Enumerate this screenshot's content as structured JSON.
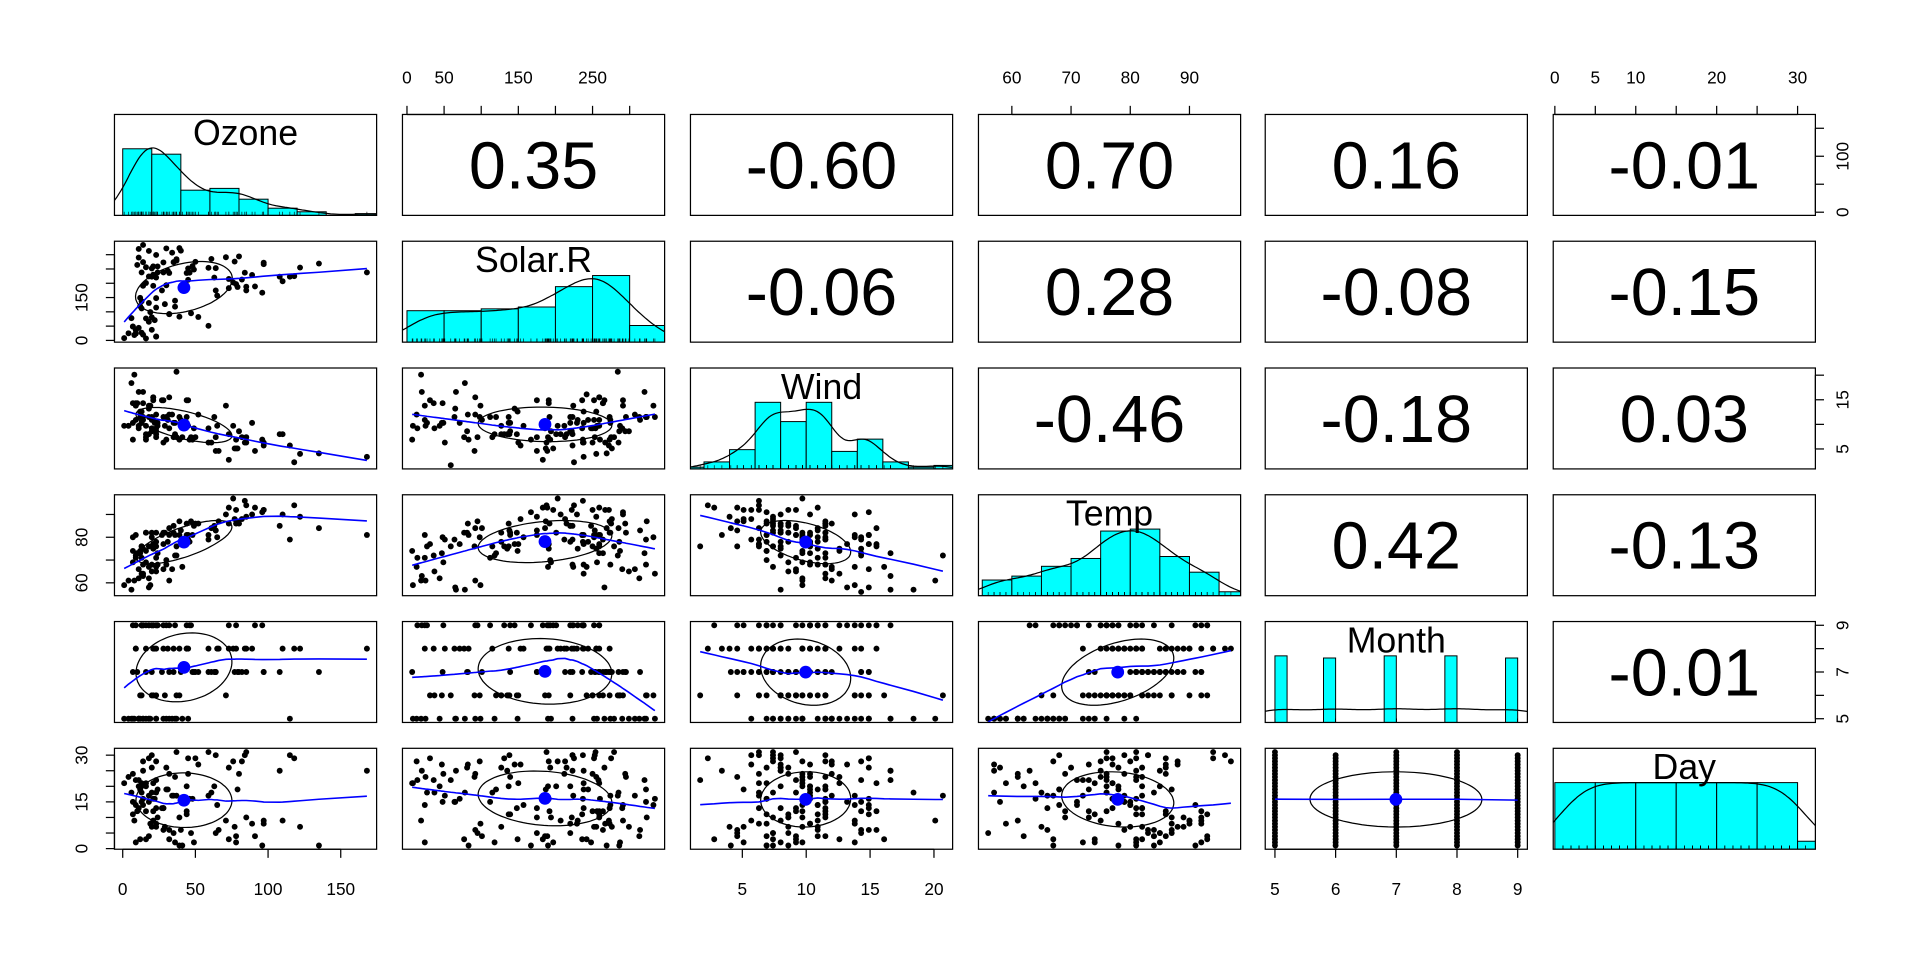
{
  "chart_data": {
    "type": "scatter-matrix",
    "variables": [
      "Ozone",
      "Solar.R",
      "Wind",
      "Temp",
      "Month",
      "Day"
    ],
    "columns": {
      "Ozone": [
        41,
        36,
        12,
        18,
        null,
        28,
        23,
        19,
        8,
        null,
        7,
        16,
        11,
        14,
        18,
        14,
        34,
        6,
        30,
        11,
        1,
        11,
        4,
        32,
        null,
        null,
        null,
        23,
        45,
        115,
        37,
        null,
        null,
        null,
        null,
        null,
        null,
        29,
        null,
        71,
        39,
        null,
        null,
        23,
        null,
        null,
        21,
        37,
        20,
        12,
        13,
        null,
        null,
        null,
        null,
        null,
        null,
        null,
        null,
        null,
        null,
        135,
        49,
        32,
        null,
        64,
        40,
        77,
        97,
        97,
        85,
        null,
        10,
        27,
        null,
        7,
        48,
        35,
        61,
        79,
        63,
        16,
        null,
        null,
        80,
        108,
        20,
        52,
        82,
        50,
        64,
        59,
        39,
        9,
        16,
        78,
        35,
        66,
        122,
        89,
        110,
        null,
        null,
        44,
        28,
        65,
        null,
        22,
        59,
        23,
        31,
        44,
        21,
        9,
        null,
        45,
        168,
        73,
        null,
        76,
        118,
        84,
        85,
        96,
        78,
        73,
        91,
        47,
        32,
        20,
        23,
        21,
        24,
        44,
        21,
        28,
        9,
        13,
        46,
        18,
        13,
        24,
        16,
        13,
        23,
        36,
        7,
        14,
        30,
        null,
        14,
        18,
        20
      ],
      "Solar.R": [
        190,
        118,
        149,
        313,
        null,
        null,
        299,
        99,
        19,
        194,
        null,
        256,
        290,
        274,
        65,
        334,
        307,
        78,
        322,
        44,
        8,
        320,
        25,
        92,
        66,
        266,
        null,
        13,
        252,
        223,
        279,
        286,
        287,
        242,
        186,
        220,
        264,
        127,
        273,
        291,
        323,
        259,
        250,
        148,
        332,
        322,
        191,
        284,
        37,
        120,
        137,
        150,
        59,
        91,
        250,
        135,
        127,
        47,
        98,
        31,
        138,
        269,
        248,
        236,
        101,
        175,
        314,
        276,
        267,
        272,
        175,
        139,
        264,
        175,
        291,
        48,
        260,
        274,
        285,
        187,
        220,
        7,
        258,
        295,
        294,
        223,
        81,
        82,
        213,
        275,
        253,
        254,
        83,
        24,
        77,
        null,
        null,
        null,
        255,
        229,
        207,
        222,
        137,
        192,
        273,
        157,
        64,
        71,
        51,
        115,
        244,
        190,
        259,
        36,
        255,
        212,
        238,
        215,
        153,
        203,
        225,
        237,
        188,
        167,
        197,
        183,
        189,
        95,
        92,
        252,
        220,
        230,
        259,
        236,
        259,
        238,
        24,
        112,
        237,
        224,
        27,
        238,
        201,
        238,
        14,
        139,
        49,
        20,
        193,
        145,
        191,
        131,
        223
      ],
      "Wind": [
        7.4,
        8.0,
        12.6,
        11.5,
        14.3,
        14.9,
        8.6,
        13.8,
        20.1,
        8.6,
        6.9,
        9.7,
        9.2,
        10.9,
        13.2,
        11.5,
        12.0,
        18.4,
        11.5,
        9.7,
        9.7,
        16.6,
        9.7,
        12.0,
        16.6,
        14.9,
        8.0,
        12.0,
        14.9,
        5.7,
        7.4,
        8.6,
        9.7,
        16.1,
        9.2,
        8.6,
        14.3,
        9.7,
        6.9,
        13.8,
        11.5,
        10.9,
        9.2,
        8.0,
        13.8,
        11.5,
        14.9,
        20.7,
        9.2,
        11.5,
        10.3,
        6.3,
        1.7,
        4.6,
        6.3,
        8.0,
        8.0,
        10.3,
        11.5,
        14.9,
        8.0,
        4.1,
        9.2,
        9.2,
        10.9,
        4.6,
        10.9,
        5.1,
        6.3,
        5.7,
        7.4,
        8.6,
        14.3,
        14.9,
        14.9,
        14.3,
        6.9,
        10.3,
        6.3,
        5.1,
        11.5,
        6.9,
        9.7,
        11.5,
        8.6,
        8.0,
        8.6,
        12.0,
        7.4,
        7.4,
        7.4,
        9.2,
        6.9,
        13.8,
        7.4,
        6.9,
        7.4,
        4.6,
        4.0,
        10.3,
        8.0,
        8.6,
        11.5,
        11.5,
        11.5,
        9.7,
        11.5,
        10.3,
        6.3,
        7.4,
        10.9,
        10.3,
        15.5,
        14.3,
        12.6,
        9.7,
        3.4,
        8.0,
        5.7,
        9.7,
        2.3,
        6.3,
        6.3,
        6.9,
        5.1,
        2.8,
        4.6,
        7.4,
        15.5,
        10.9,
        10.3,
        10.9,
        9.7,
        14.9,
        15.5,
        6.3,
        10.9,
        11.5,
        6.9,
        13.8,
        10.3,
        10.3,
        8.0,
        12.6,
        9.2,
        10.3,
        10.3,
        16.6,
        6.9,
        13.2,
        14.3,
        8.0,
        11.5
      ],
      "Temp": [
        67,
        72,
        74,
        62,
        56,
        66,
        65,
        59,
        61,
        69,
        74,
        69,
        66,
        68,
        58,
        64,
        66,
        57,
        68,
        62,
        59,
        73,
        61,
        61,
        57,
        58,
        57,
        67,
        81,
        79,
        76,
        78,
        74,
        67,
        84,
        85,
        79,
        82,
        87,
        90,
        87,
        93,
        92,
        82,
        80,
        79,
        77,
        72,
        65,
        73,
        76,
        77,
        76,
        76,
        76,
        75,
        78,
        73,
        80,
        77,
        83,
        84,
        85,
        81,
        84,
        83,
        83,
        88,
        92,
        92,
        89,
        82,
        73,
        81,
        91,
        80,
        81,
        82,
        84,
        87,
        85,
        74,
        81,
        82,
        86,
        85,
        82,
        86,
        88,
        86,
        83,
        81,
        81,
        81,
        82,
        86,
        85,
        87,
        89,
        90,
        90,
        92,
        86,
        86,
        82,
        80,
        79,
        77,
        79,
        76,
        78,
        78,
        77,
        72,
        75,
        79,
        81,
        86,
        88,
        97,
        94,
        96,
        94,
        91,
        92,
        93,
        93,
        87,
        84,
        80,
        78,
        75,
        73,
        81,
        76,
        77,
        71,
        71,
        78,
        67,
        76,
        68,
        82,
        64,
        71,
        81,
        69,
        63,
        70,
        77,
        75,
        76,
        68
      ]
    },
    "months": [
      5,
      6,
      7,
      8,
      9
    ],
    "days_in_month": [
      31,
      30,
      31,
      31,
      30
    ],
    "correlations": [
      [
        "0.35",
        "-0.60",
        "0.70",
        "0.16",
        "-0.01"
      ],
      [
        "-0.06",
        "0.28",
        "-0.08",
        "-0.15"
      ],
      [
        "-0.46",
        "-0.18",
        "0.03"
      ],
      [
        "0.42",
        "-0.13"
      ],
      [
        "-0.01"
      ]
    ],
    "hist_breaks": {
      "Ozone": [
        0,
        20,
        40,
        60,
        80,
        100,
        120,
        140,
        160,
        180
      ],
      "Solar.R": [
        0,
        50,
        100,
        150,
        200,
        250,
        300,
        350
      ],
      "Wind": [
        0,
        2,
        4,
        6,
        8,
        10,
        12,
        14,
        16,
        18,
        20,
        22
      ],
      "Temp": [
        55,
        60,
        65,
        70,
        75,
        80,
        85,
        90,
        95,
        100
      ],
      "Month": [
        5,
        5.2,
        5.4,
        5.6,
        5.8,
        6,
        6.2,
        6.4,
        6.6,
        6.8,
        7,
        7.2,
        7.4,
        7.6,
        7.8,
        8,
        8.2,
        8.4,
        8.6,
        8.8,
        9
      ],
      "Day": [
        0,
        5,
        10,
        15,
        20,
        25,
        30,
        35
      ]
    },
    "axes": {
      "Ozone": {
        "outer_side": "bottom",
        "ticks": [
          0,
          50,
          100,
          150
        ],
        "labels": [
          "0",
          "50",
          "100",
          "150"
        ],
        "inner_side": "right",
        "inner_ticks": [
          0,
          50,
          100,
          150
        ],
        "inner_labels": [
          "0",
          "",
          "100",
          ""
        ]
      },
      "Solar.R": {
        "outer_side": "top",
        "ticks": [
          0,
          50,
          100,
          150,
          200,
          250,
          300
        ],
        "labels": [
          "0",
          "50",
          "",
          "150",
          "",
          "250",
          ""
        ],
        "inner_side": "left",
        "inner_ticks": [
          0,
          50,
          100,
          150,
          200,
          250,
          300
        ],
        "inner_labels": [
          "0",
          "",
          "",
          "150",
          "",
          "",
          ""
        ]
      },
      "Wind": {
        "outer_side": "bottom",
        "ticks": [
          5,
          10,
          15,
          20
        ],
        "labels": [
          "5",
          "10",
          "15",
          "20"
        ],
        "inner_side": "right",
        "inner_ticks": [
          5,
          10,
          15,
          20
        ],
        "inner_labels": [
          "5",
          "",
          "15",
          ""
        ]
      },
      "Temp": {
        "outer_side": "top",
        "ticks": [
          60,
          70,
          80,
          90
        ],
        "labels": [
          "60",
          "70",
          "80",
          "90"
        ],
        "inner_side": "left",
        "inner_ticks": [
          60,
          70,
          80,
          90
        ],
        "inner_labels": [
          "60",
          "",
          "80",
          ""
        ]
      },
      "Month": {
        "outer_side": "bottom",
        "ticks": [
          5,
          6,
          7,
          8,
          9
        ],
        "labels": [
          "5",
          "6",
          "7",
          "8",
          "9"
        ],
        "inner_side": "right",
        "inner_ticks": [
          5,
          6,
          7,
          8,
          9
        ],
        "inner_labels": [
          "5",
          "",
          "7",
          "",
          "9"
        ]
      },
      "Day": {
        "outer_side": "top",
        "ticks": [
          0,
          5,
          10,
          15,
          20,
          25,
          30
        ],
        "labels": [
          "0",
          "5",
          "10",
          "",
          "20",
          "",
          "30"
        ],
        "inner_side": "left",
        "inner_ticks": [
          0,
          5,
          10,
          15,
          20,
          25,
          30
        ],
        "inner_labels": [
          "0",
          "",
          "",
          "15",
          "",
          "",
          "30"
        ]
      }
    },
    "grid": false,
    "colors": {
      "histogram": "#00FFFF",
      "smooth": "#0000FF",
      "mean_point": "#0000FF",
      "points": "#000000",
      "ellipse": "#000000"
    }
  }
}
